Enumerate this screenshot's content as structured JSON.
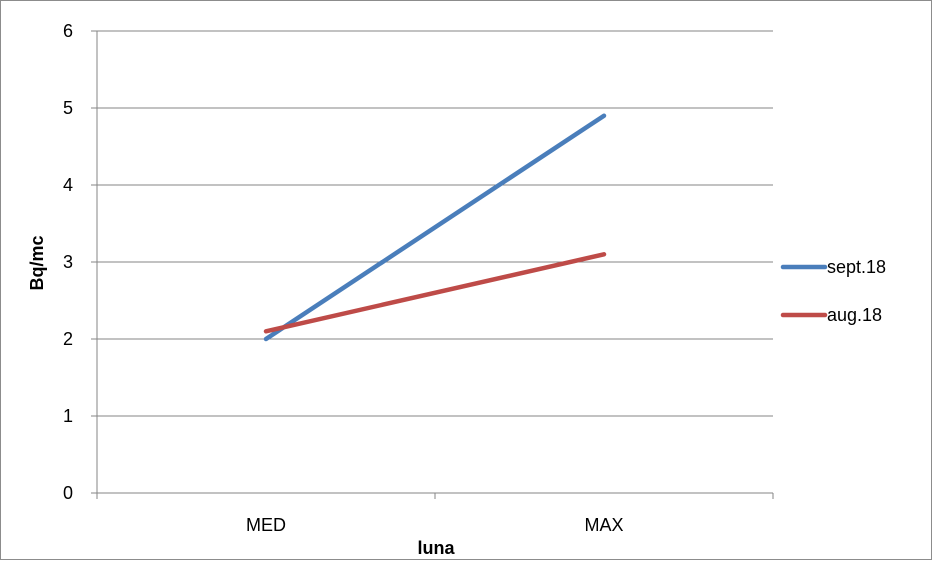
{
  "chart_data": {
    "type": "line",
    "categories": [
      "MED",
      "MAX"
    ],
    "series": [
      {
        "name": "sept.18",
        "values": [
          2.0,
          4.9
        ],
        "color": "#4a7ebb"
      },
      {
        "name": "aug.18",
        "values": [
          2.1,
          3.1
        ],
        "color": "#be4b48"
      }
    ],
    "xlabel": "luna",
    "ylabel": "Bq/mc",
    "ylim": [
      0,
      6
    ],
    "yticks": [
      0,
      1,
      2,
      3,
      4,
      5,
      6
    ],
    "grid": true,
    "legend": "right"
  }
}
